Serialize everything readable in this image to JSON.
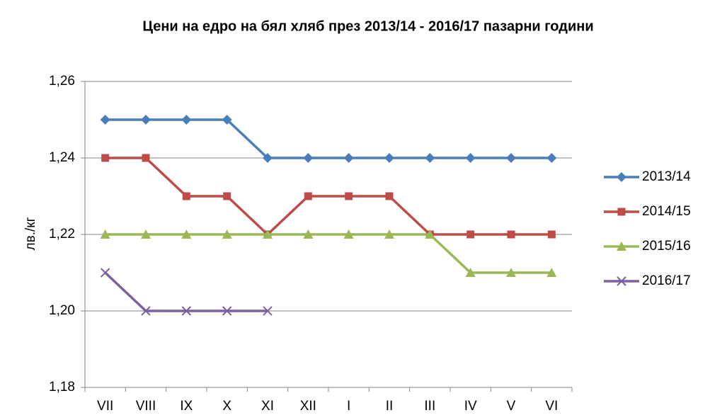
{
  "chart_data": {
    "type": "line",
    "title": "Цени на едро на бял хляб през 2013/14  - 2016/17  пазарни години",
    "y_label": "лв./кг",
    "categories": [
      "VII",
      "VIII",
      "IX",
      "X",
      "XI",
      "XII",
      "I",
      "II",
      "III",
      "IV",
      "V",
      "VI"
    ],
    "series": [
      {
        "name": "2013/14",
        "color": "#4a7ebb",
        "marker": "diamond",
        "values": [
          1.25,
          1.25,
          1.25,
          1.25,
          1.24,
          1.24,
          1.24,
          1.24,
          1.24,
          1.24,
          1.24,
          1.24
        ]
      },
      {
        "name": "2014/15",
        "color": "#be4b48",
        "marker": "square",
        "values": [
          1.24,
          1.24,
          1.23,
          1.23,
          1.22,
          1.23,
          1.23,
          1.23,
          1.22,
          1.22,
          1.22,
          1.22
        ]
      },
      {
        "name": "2015/16",
        "color": "#98b954",
        "marker": "triangle",
        "values": [
          1.22,
          1.22,
          1.22,
          1.22,
          1.22,
          1.22,
          1.22,
          1.22,
          1.22,
          1.21,
          1.21,
          1.21
        ]
      },
      {
        "name": "2016/17",
        "color": "#7d60a0",
        "marker": "x",
        "values": [
          1.21,
          1.2,
          1.2,
          1.2,
          1.2,
          null,
          null,
          null,
          null,
          null,
          null,
          null
        ]
      }
    ],
    "ylim": [
      1.18,
      1.26
    ],
    "yticks": [
      {
        "value": 1.18,
        "label": "1,18"
      },
      {
        "value": 1.2,
        "label": "1,20"
      },
      {
        "value": 1.22,
        "label": "1,22"
      },
      {
        "value": 1.24,
        "label": "1,24"
      },
      {
        "value": 1.26,
        "label": "1,26"
      }
    ],
    "grid": true,
    "legend": "right"
  }
}
